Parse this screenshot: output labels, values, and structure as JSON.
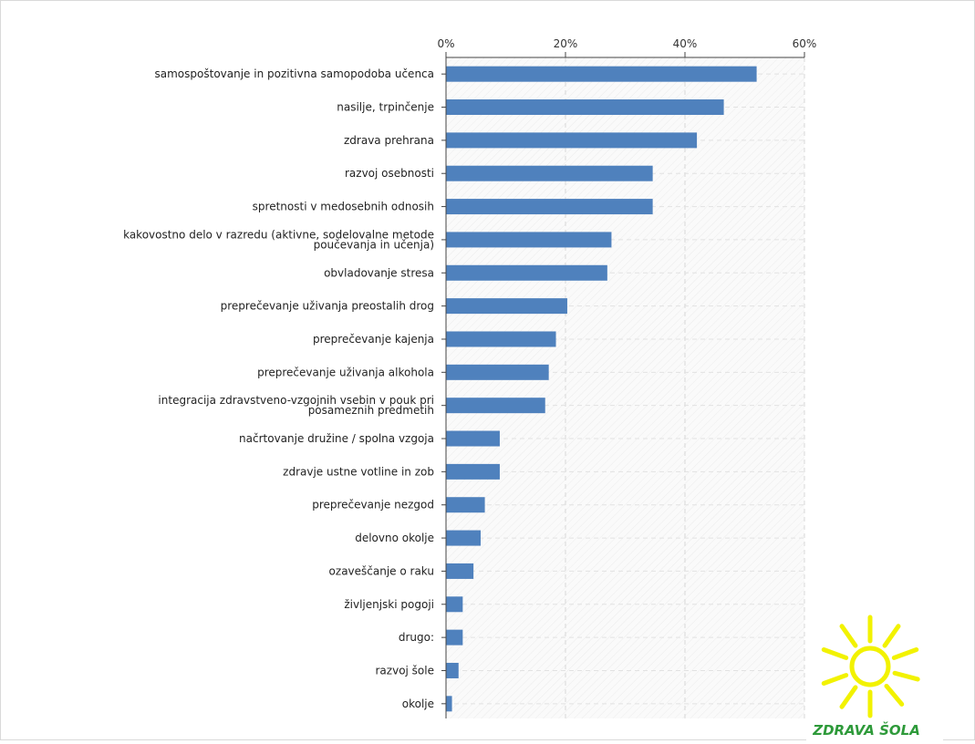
{
  "chart_data": {
    "type": "bar",
    "orientation": "horizontal",
    "xlim": [
      0,
      60
    ],
    "ticks": [
      "0%",
      "20%",
      "40%",
      "60%"
    ],
    "categories": [
      [
        "samospoštovanje in pozitivna samopodoba učenca"
      ],
      [
        "nasilje, trpinčenje"
      ],
      [
        "zdrava prehrana"
      ],
      [
        "razvoj osebnosti"
      ],
      [
        "spretnosti v medosebnih odnosih"
      ],
      [
        "kakovostno delo v razredu (aktivne, sodelovalne metode",
        "poučevanja in učenja)"
      ],
      [
        "obvladovanje stresa"
      ],
      [
        "preprečevanje uživanja preostalih drog"
      ],
      [
        "preprečevanje kajenja"
      ],
      [
        "preprečevanje uživanja alkohola"
      ],
      [
        "integracija zdravstveno-vzgojnih vsebin v pouk pri",
        "posameznih predmetih"
      ],
      [
        "načrtovanje družine / spolna vzgoja"
      ],
      [
        "zdravje ustne votline in zob"
      ],
      [
        "preprečevanje nezgod"
      ],
      [
        "delovno okolje"
      ],
      [
        "ozaveščanje o raku"
      ],
      [
        "življenjski pogoji"
      ],
      [
        "drugo:"
      ],
      [
        "razvoj šole"
      ],
      [
        "okolje"
      ]
    ],
    "values": [
      52,
      46.5,
      42,
      34.6,
      34.6,
      27.7,
      27,
      20.3,
      18.4,
      17.2,
      16.6,
      9,
      9,
      6.5,
      5.8,
      4.6,
      2.8,
      2.8,
      2.1,
      1
    ],
    "bar_color": "#4f81bd",
    "grid": true,
    "legend": "none"
  },
  "logo": {
    "text": "ZDRAVA ŠOLA",
    "sun_color": "#f2f200",
    "text_color": "#2e9a3a"
  }
}
